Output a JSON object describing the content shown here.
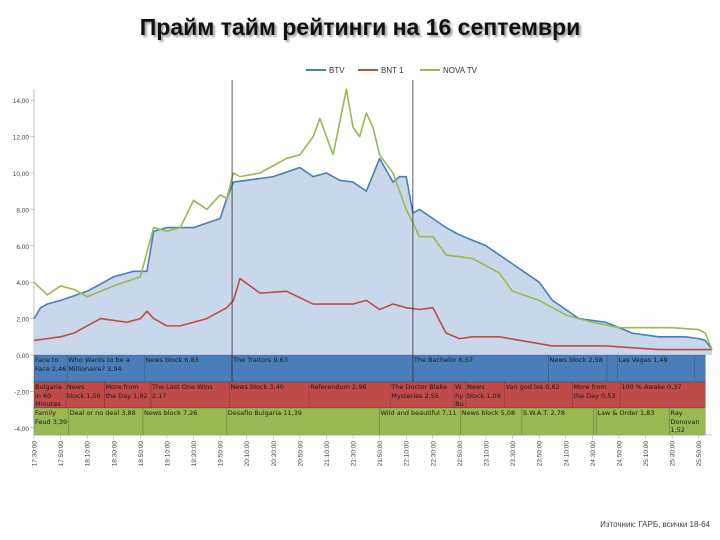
{
  "title": "Прайм тайм рейтинги на 16 септември",
  "source": "Източник: ГАРБ, всички 18-64",
  "chart_data": {
    "type": "area",
    "title": "Прайм тайм рейтинги на 16 септември",
    "x_unit": "minutes after 17:30",
    "xlim": [
      0,
      510
    ],
    "ylim": [
      -4,
      14
    ],
    "y_ticks": [
      "14,00",
      "12,00",
      "10,00",
      "8,00",
      "6,00",
      "4,00",
      "2,00",
      "0,00",
      "-2,00",
      "-4,00"
    ],
    "y_tick_values": [
      14,
      12,
      10,
      8,
      6,
      4,
      2,
      0,
      -2,
      -4
    ],
    "x_ticks": [
      "17:30:00",
      "17:50:00",
      "18:10:00",
      "18:30:00",
      "18:50:00",
      "19:10:00",
      "19:30:00",
      "19:50:00",
      "20:10:00",
      "20:30:00",
      "20:50:00",
      "21:10:00",
      "21:30:00",
      "21:50:00",
      "22:10:00",
      "22:30:00",
      "22:50:00",
      "23:10:00",
      "23:30:00",
      "23:50:00",
      "24:10:00",
      "24:30:00",
      "24:50:00",
      "25:10:00",
      "25:30:00",
      "25:50:00"
    ],
    "legend_position": "top-center",
    "colors": {
      "BTV": "#4a7ebb",
      "BNT 1": "#be4b48",
      "NOVA TV": "#98b954",
      "fill": "#c9d7ea"
    },
    "markers": [
      149,
      285
    ],
    "series": [
      {
        "name": "BTV",
        "x": [
          0,
          5,
          10,
          20,
          40,
          60,
          75,
          85,
          90,
          100,
          120,
          140,
          145,
          150,
          160,
          180,
          200,
          210,
          220,
          230,
          240,
          250,
          260,
          270,
          275,
          280,
          285,
          290,
          300,
          310,
          320,
          340,
          360,
          380,
          390,
          410,
          430,
          450,
          470,
          490,
          500,
          505,
          510
        ],
        "y": [
          2.0,
          2.6,
          2.8,
          3.0,
          3.5,
          4.3,
          4.6,
          4.6,
          6.8,
          7.0,
          7.0,
          7.5,
          8.6,
          9.5,
          9.6,
          9.8,
          10.3,
          9.8,
          10.0,
          9.6,
          9.5,
          9.0,
          10.8,
          9.5,
          9.8,
          9.8,
          7.8,
          8.0,
          7.5,
          7.0,
          6.6,
          6.0,
          5.0,
          4.0,
          3.0,
          2.0,
          1.8,
          1.2,
          1.0,
          1.0,
          0.9,
          0.8,
          0.3
        ]
      },
      {
        "name": "BNT 1",
        "x": [
          0,
          10,
          20,
          30,
          50,
          70,
          80,
          85,
          90,
          100,
          110,
          130,
          140,
          145,
          150,
          155,
          170,
          190,
          210,
          240,
          250,
          260,
          270,
          280,
          290,
          300,
          310,
          320,
          330,
          350,
          390,
          430,
          470,
          510
        ],
        "y": [
          0.8,
          0.9,
          1.0,
          1.2,
          2.0,
          1.8,
          2.0,
          2.4,
          2.0,
          1.6,
          1.6,
          2.0,
          2.4,
          2.6,
          3.0,
          4.2,
          3.4,
          3.5,
          2.8,
          2.8,
          3.0,
          2.5,
          2.8,
          2.6,
          2.5,
          2.6,
          1.2,
          0.9,
          1.0,
          1.0,
          0.5,
          0.5,
          0.3,
          0.3
        ]
      },
      {
        "name": "NOVA TV",
        "x": [
          0,
          10,
          20,
          30,
          40,
          60,
          80,
          90,
          100,
          110,
          120,
          130,
          140,
          145,
          150,
          155,
          170,
          190,
          200,
          210,
          215,
          225,
          235,
          240,
          245,
          250,
          255,
          260,
          270,
          280,
          290,
          300,
          310,
          330,
          350,
          360,
          380,
          400,
          420,
          440,
          460,
          480,
          500,
          505,
          510
        ],
        "y": [
          4.0,
          3.3,
          3.8,
          3.6,
          3.2,
          3.8,
          4.3,
          7.0,
          6.8,
          7.0,
          8.5,
          8.0,
          8.8,
          8.6,
          10.0,
          9.8,
          10.0,
          10.8,
          11.0,
          12.0,
          13.0,
          11.0,
          14.6,
          12.5,
          12.0,
          13.3,
          12.5,
          11.0,
          10.0,
          8.0,
          6.5,
          6.5,
          5.5,
          5.3,
          4.5,
          3.5,
          3.0,
          2.2,
          1.8,
          1.5,
          1.5,
          1.5,
          1.4,
          1.2,
          0.3
        ]
      }
    ],
    "schedule": [
      {
        "channel": "BTV",
        "programs": [
          {
            "label": "Face to Face 2,46",
            "start": 0,
            "end": 25
          },
          {
            "label": "Who Wants to be a Millionaire? 3,94",
            "start": 25,
            "end": 83
          },
          {
            "label": "News block 6,83",
            "start": 83,
            "end": 149
          },
          {
            "label": "The Traitors 9,63",
            "start": 149,
            "end": 285
          },
          {
            "label": "The Bachelor 6,57",
            "start": 285,
            "end": 387
          },
          {
            "label": "News block 2,58",
            "start": 387,
            "end": 431
          },
          {
            "label": "",
            "start": 431,
            "end": 439
          },
          {
            "label": "Las Vegas 1,49",
            "start": 439,
            "end": 497
          },
          {
            "label": "",
            "start": 497,
            "end": 505
          }
        ]
      },
      {
        "channel": "BNT 1",
        "programs": [
          {
            "label": "Bulgaria in 60 Minutes",
            "start": 0,
            "end": 24
          },
          {
            "label": "News block 1,56",
            "start": 24,
            "end": 53
          },
          {
            "label": "More from the Day 1,92",
            "start": 53,
            "end": 88
          },
          {
            "label": "The Last One Wins 2,17",
            "start": 88,
            "end": 147
          },
          {
            "label": "News block 3,40",
            "start": 147,
            "end": 207
          },
          {
            "label": "Referendum 2,96",
            "start": 207,
            "end": 268
          },
          {
            "label": "The Doctor Blake Mysteries 2,55",
            "start": 268,
            "end": 316
          },
          {
            "label": "W hy Bu",
            "start": 316,
            "end": 325
          },
          {
            "label": "News block 1,09",
            "start": 325,
            "end": 354
          },
          {
            "label": "Van god los 0,62",
            "start": 354,
            "end": 405
          },
          {
            "label": "More from the Day 0,53",
            "start": 405,
            "end": 441
          },
          {
            "label": "100 % Awake 0,37",
            "start": 441,
            "end": 505
          }
        ]
      },
      {
        "channel": "NOVA TV",
        "programs": [
          {
            "label": "Family Feud 3,39",
            "start": 0,
            "end": 26
          },
          {
            "label": "Deal or no deal 3,88",
            "start": 26,
            "end": 82
          },
          {
            "label": "News block 7,26",
            "start": 82,
            "end": 145
          },
          {
            "label": "Desafío Bulgaria 11,39",
            "start": 145,
            "end": 260
          },
          {
            "label": "Wild and beautiful 7,11",
            "start": 260,
            "end": 321
          },
          {
            "label": "News block 5,08",
            "start": 321,
            "end": 367
          },
          {
            "label": "S.W.A.T. 2,78",
            "start": 367,
            "end": 421
          },
          {
            "label": "",
            "start": 421,
            "end": 423
          },
          {
            "label": "Law & Order 1,83",
            "start": 423,
            "end": 478
          },
          {
            "label": "Ray Donovan 1,52",
            "start": 478,
            "end": 505
          }
        ]
      }
    ]
  }
}
